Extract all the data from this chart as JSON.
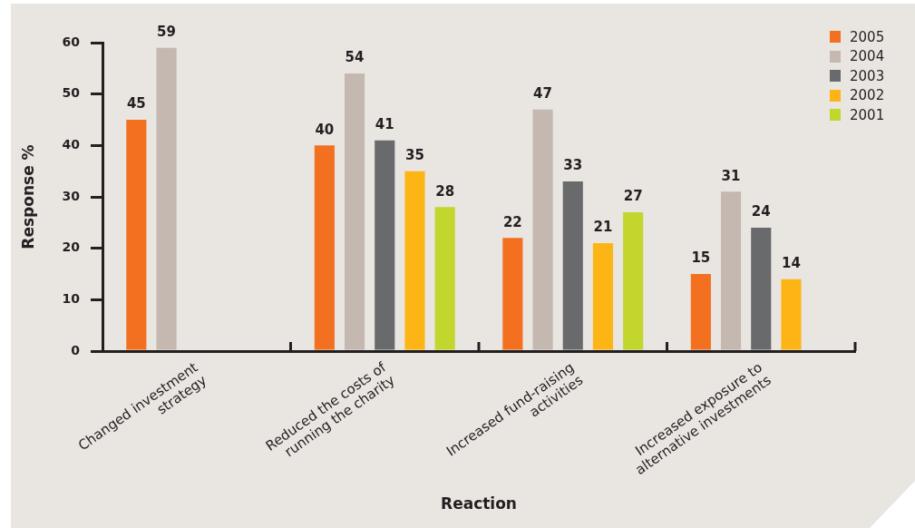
{
  "chart_data": {
    "type": "bar",
    "xlabel": "Reaction",
    "ylabel": "Response %",
    "categories": [
      "Changed investment strategy",
      "Reduced the costs of running the charity",
      "Increased fund-raising activities",
      "Increased exposure to alternative investments"
    ],
    "series": [
      {
        "name": "2005",
        "color": "#f37021",
        "values": [
          45,
          40,
          22,
          15
        ]
      },
      {
        "name": "2004",
        "color": "#c4b8b0",
        "values": [
          59,
          54,
          47,
          31
        ]
      },
      {
        "name": "2003",
        "color": "#696a6c",
        "values": [
          null,
          41,
          33,
          24
        ]
      },
      {
        "name": "2002",
        "color": "#fdb515",
        "values": [
          null,
          35,
          21,
          14
        ]
      },
      {
        "name": "2001",
        "color": "#c2d62e",
        "values": [
          null,
          28,
          27,
          null
        ]
      }
    ],
    "ylim": [
      0,
      60
    ],
    "yticks": [
      0,
      10,
      20,
      30,
      40,
      50,
      60
    ],
    "grid": false,
    "legend": "top right",
    "data_labels": true
  }
}
